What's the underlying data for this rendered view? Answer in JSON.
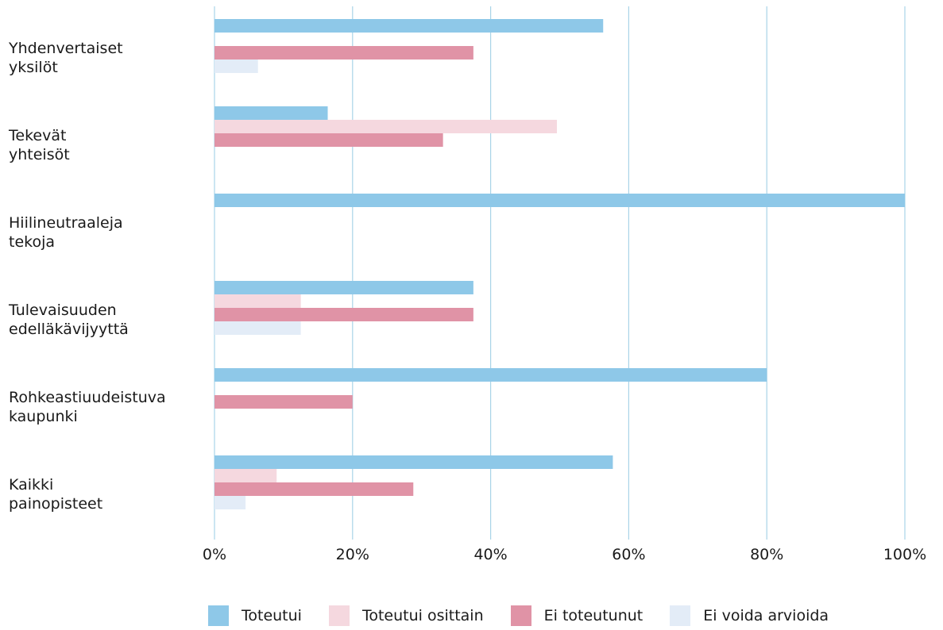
{
  "chart_data": {
    "type": "bar",
    "orientation": "horizontal",
    "categories": [
      [
        "Yhdenvertaiset",
        "yksilöt"
      ],
      [
        "Tekevät",
        "yhteisöt"
      ],
      [
        "Hiilineutraaleja",
        "tekoja"
      ],
      [
        "Tulevaisuuden",
        "edelläkävijyyttä"
      ],
      [
        "Rohkeastiuudeistuva",
        "kaupunki"
      ],
      [
        "Kaikki",
        "painopisteet"
      ]
    ],
    "series": [
      {
        "name": "Toteutui",
        "color": "#8ec8e8",
        "values": [
          56.3,
          16.4,
          100,
          37.5,
          80,
          57.7
        ]
      },
      {
        "name": "Toteutui osittain",
        "color": "#f5d8df",
        "values": [
          0,
          49.6,
          0,
          12.5,
          0,
          9.0
        ]
      },
      {
        "name": "Ei toteutunut",
        "color": "#e093a6",
        "values": [
          37.5,
          33.1,
          0,
          37.5,
          20,
          28.8
        ]
      },
      {
        "name": "Ei voida arvioida",
        "color": "#e3ecf7",
        "values": [
          6.3,
          0,
          0,
          12.5,
          0,
          4.5
        ]
      }
    ],
    "xlim": [
      0,
      100
    ],
    "xticks": [
      "0%",
      "20%",
      "40%",
      "60%",
      "80%",
      "100%"
    ],
    "grid": "vertical",
    "gridColor": "#a9d4e8",
    "legend": "bottom"
  }
}
